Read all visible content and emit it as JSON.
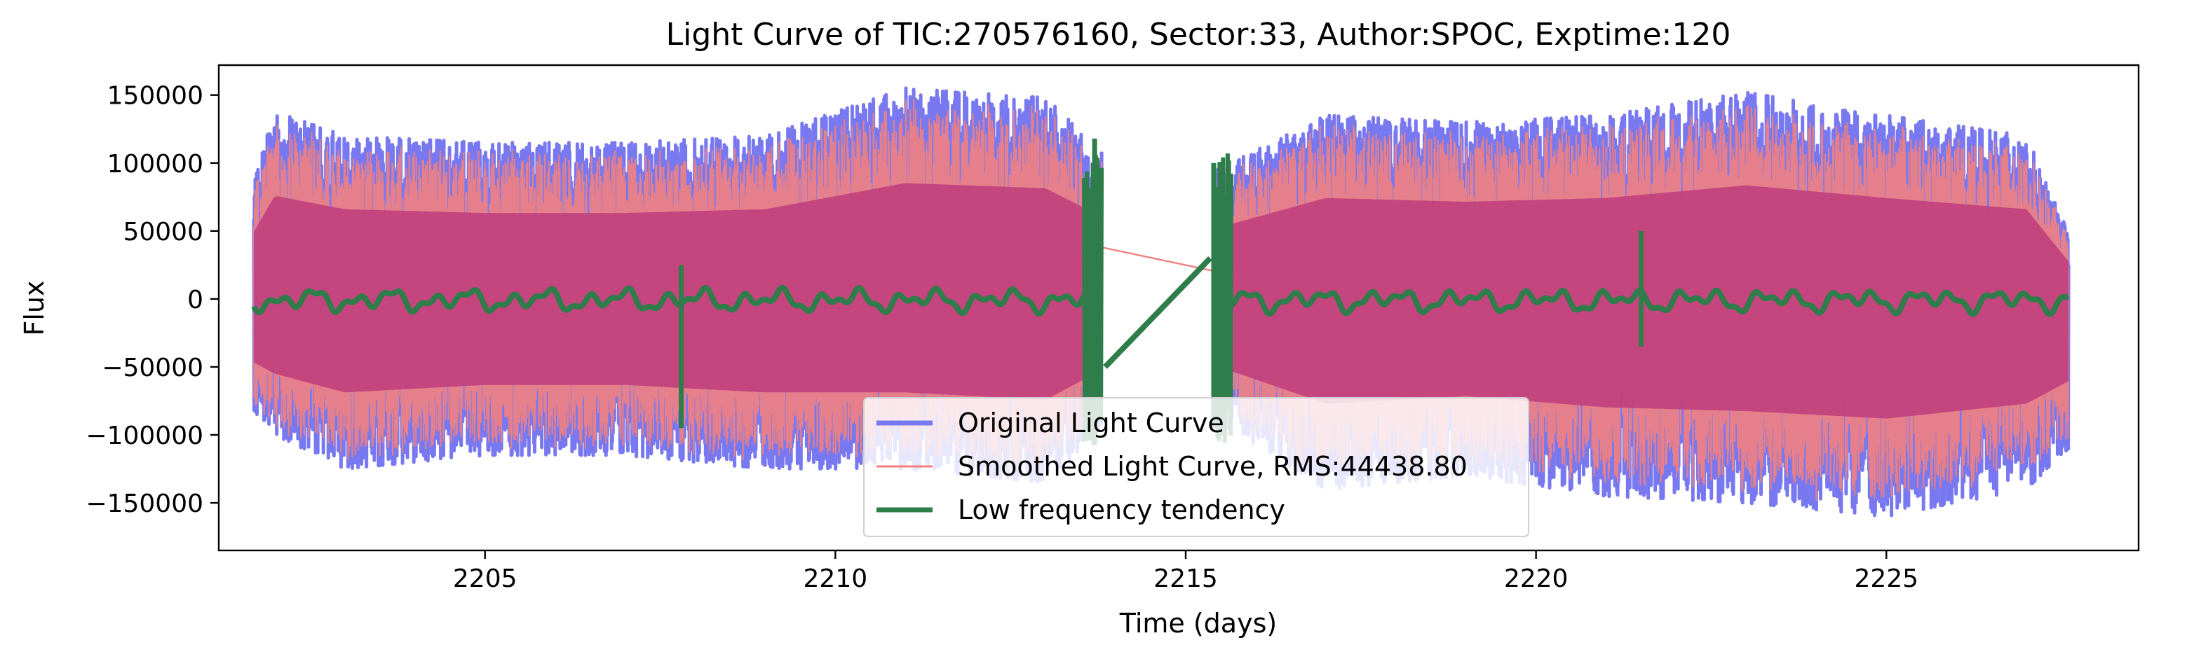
{
  "chart_data": {
    "type": "line",
    "title": "Light Curve of TIC:270576160, Sector:33, Author:SPOC, Exptime:120",
    "xlabel": "Time (days)",
    "ylabel": "Flux",
    "xlim": [
      2201.2,
      2228.6
    ],
    "ylim": [
      -185000,
      172000
    ],
    "xticks": [
      2205,
      2210,
      2215,
      2220,
      2225
    ],
    "xtick_labels": [
      "2205",
      "2210",
      "2215",
      "2220",
      "2225"
    ],
    "yticks": [
      150000,
      100000,
      50000,
      0,
      -50000,
      -100000,
      -150000
    ],
    "ytick_labels": [
      "150000",
      "100000",
      "50000",
      "0",
      "−50000",
      "−100000",
      "−150000"
    ],
    "grid": false,
    "legend_position": "lower center",
    "data_gap": [
      2213.8,
      2215.45
    ],
    "segments": [
      [
        2201.7,
        2213.8
      ],
      [
        2215.45,
        2227.6
      ]
    ],
    "series": [
      {
        "name": "Original Light Curve",
        "color": "#7878f0",
        "style": "oscillating signal, envelope approx ±100000 with peaks to ±160000",
        "envelope": [
          {
            "x": 2201.7,
            "high": 90000,
            "low": -85000
          },
          {
            "x": 2202,
            "high": 138000,
            "low": -100000
          },
          {
            "x": 2203,
            "high": 120000,
            "low": -125000
          },
          {
            "x": 2205,
            "high": 115000,
            "low": -115000
          },
          {
            "x": 2207,
            "high": 115000,
            "low": -115000
          },
          {
            "x": 2209,
            "high": 120000,
            "low": -125000
          },
          {
            "x": 2211,
            "high": 155000,
            "low": -125000
          },
          {
            "x": 2213,
            "high": 148000,
            "low": -135000
          },
          {
            "x": 2213.8,
            "high": 110000,
            "low": -95000
          },
          {
            "x": 2215.45,
            "high": 95000,
            "low": -90000
          },
          {
            "x": 2217,
            "high": 135000,
            "low": -140000
          },
          {
            "x": 2219,
            "high": 130000,
            "low": -130000
          },
          {
            "x": 2221,
            "high": 135000,
            "low": -145000
          },
          {
            "x": 2223,
            "high": 152000,
            "low": -150000
          },
          {
            "x": 2225,
            "high": 135000,
            "low": -160000
          },
          {
            "x": 2227,
            "high": 120000,
            "low": -140000
          },
          {
            "x": 2227.6,
            "high": 50000,
            "low": -110000
          }
        ]
      },
      {
        "name": "Smoothed Light Curve, RMS:44438.80",
        "color": "#f08080",
        "rms": 44438.8,
        "gap_line": [
          [
            2213.8,
            38000
          ],
          [
            2215.45,
            20000
          ]
        ]
      },
      {
        "name": "Low frequency tendency",
        "color": "#2e7d4a",
        "baseline": 0,
        "features": [
          {
            "x": 2207.8,
            "high": 25000,
            "low": -95000
          },
          {
            "x": 2213.7,
            "high": 118000,
            "low": -95000
          },
          {
            "x": 2215.4,
            "high": 100000,
            "low": -95000
          },
          {
            "x": 2221.5,
            "high": 50000,
            "low": -35000
          }
        ],
        "gap_line": [
          [
            2213.85,
            -50000
          ],
          [
            2215.35,
            30000
          ]
        ]
      }
    ]
  }
}
